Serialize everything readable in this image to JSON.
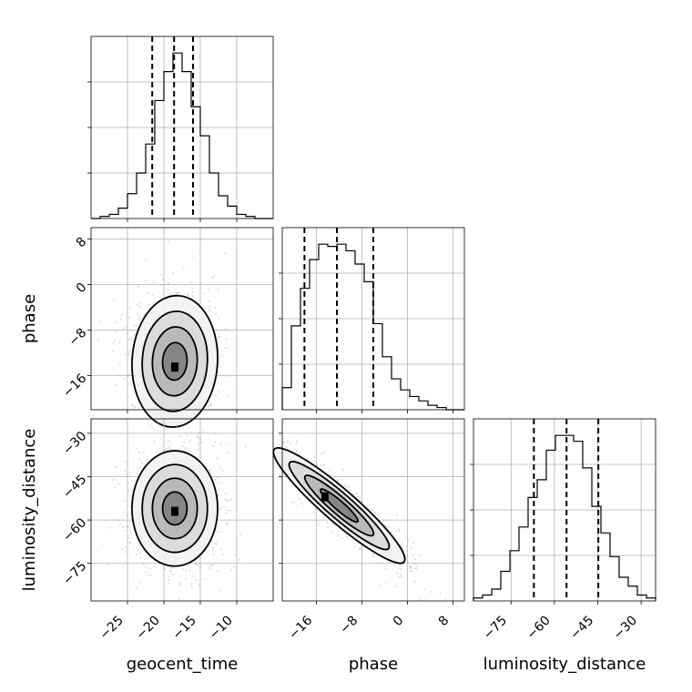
{
  "chart_data": {
    "type": "corner",
    "parameters": [
      "geocent_time",
      "phase",
      "luminosity_distance"
    ],
    "ranges": {
      "geocent_time": [
        -30,
        -5
      ],
      "phase": [
        -22,
        10
      ],
      "luminosity_distance": [
        -88,
        -25
      ]
    },
    "ticks": {
      "geocent_time": [
        -25,
        -20,
        -15,
        -10
      ],
      "phase": [
        -16,
        -8,
        0,
        8
      ],
      "luminosity_distance": [
        -75,
        -60,
        -45,
        -30
      ]
    },
    "histograms": {
      "geocent_time": {
        "bin_start": -30,
        "bin_width": 1.25,
        "counts": [
          0,
          1,
          2,
          5,
          12,
          22,
          36,
          57,
          71,
          80,
          71,
          54,
          40,
          22,
          11,
          6,
          2,
          1,
          0,
          0
        ],
        "quantiles": [
          -21.6,
          -18.6,
          -16.0
        ]
      },
      "phase": {
        "bin_start": -22,
        "bin_width": 1.6,
        "counts": [
          10,
          38,
          55,
          68,
          75,
          74,
          75,
          72,
          66,
          58,
          39,
          24,
          14,
          9,
          6,
          4,
          2,
          1,
          0,
          0
        ],
        "quantiles": [
          -18.1,
          -12.4,
          -6.0
        ]
      },
      "luminosity_distance": {
        "bin_start": -88,
        "bin_width": 3.15,
        "counts": [
          1,
          2,
          4,
          10,
          17,
          25,
          35,
          41,
          51,
          56,
          56,
          54,
          45,
          32,
          23,
          15,
          8,
          5,
          2,
          1
        ],
        "quantiles": [
          -67.1,
          -55.8,
          -44.8
        ]
      }
    },
    "joint_2d": [
      {
        "x": "geocent_time",
        "y": "phase",
        "mean": [
          -18.5,
          -13.5
        ],
        "sd": [
          2.8,
          5.5
        ],
        "corr": 0.05,
        "peak": [
          -18.5,
          -14.5
        ]
      },
      {
        "x": "geocent_time",
        "y": "luminosity_distance",
        "mean": [
          -18.5,
          -56.0
        ],
        "sd": [
          2.8,
          9.5
        ],
        "corr": 0.0,
        "peak": [
          -18.5,
          -57.0
        ]
      },
      {
        "x": "phase",
        "y": "luminosity_distance",
        "mean": [
          -12.0,
          -55.0
        ],
        "sd": [
          5.5,
          9.5
        ],
        "corr": -0.93,
        "peak": [
          -14.5,
          -52.0
        ]
      }
    ],
    "grid": true
  }
}
